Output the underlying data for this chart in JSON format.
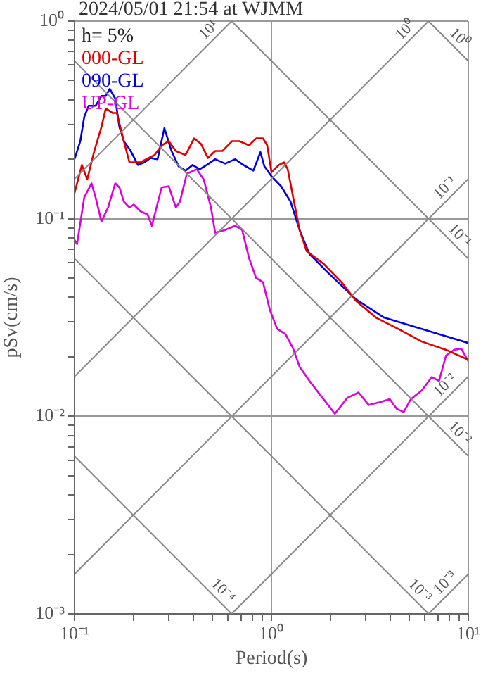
{
  "chart_data": {
    "type": "line",
    "title": "2024/05/01 21:54 at WJMM",
    "xlabel": "Period(s)",
    "ylabel": "pSv(cm/s)",
    "annotations": [
      "h= 5%"
    ],
    "log": "xy",
    "grid": true,
    "legend": "top left",
    "xlim": [
      0.1,
      10
    ],
    "ylim": [
      0.001,
      1
    ],
    "xticks": [
      {
        "value": 0.1,
        "label": "10⁻¹"
      },
      {
        "value": 0.2,
        "label": null
      },
      {
        "value": 0.3,
        "label": null
      },
      {
        "value": 0.4,
        "label": null
      },
      {
        "value": 0.5,
        "label": null
      },
      {
        "value": 0.6,
        "label": null
      },
      {
        "value": 0.7,
        "label": null
      },
      {
        "value": 0.8,
        "label": null
      },
      {
        "value": 0.9,
        "label": null
      },
      {
        "value": 1,
        "label": "10⁰"
      },
      {
        "value": 2,
        "label": null
      },
      {
        "value": 3,
        "label": null
      },
      {
        "value": 4,
        "label": null
      },
      {
        "value": 5,
        "label": null
      },
      {
        "value": 6,
        "label": null
      },
      {
        "value": 7,
        "label": null
      },
      {
        "value": 8,
        "label": null
      },
      {
        "value": 9,
        "label": null
      },
      {
        "value": 10,
        "label": "10¹"
      }
    ],
    "yticks": [
      {
        "value": 0.001,
        "label": "10⁻³"
      },
      {
        "value": 0.002,
        "label": null
      },
      {
        "value": 0.003,
        "label": null
      },
      {
        "value": 0.004,
        "label": null
      },
      {
        "value": 0.005,
        "label": null
      },
      {
        "value": 0.006,
        "label": null
      },
      {
        "value": 0.007,
        "label": null
      },
      {
        "value": 0.008,
        "label": null
      },
      {
        "value": 0.009,
        "label": null
      },
      {
        "value": 0.01,
        "label": "10⁻²"
      },
      {
        "value": 0.02,
        "label": null
      },
      {
        "value": 0.03,
        "label": null
      },
      {
        "value": 0.04,
        "label": null
      },
      {
        "value": 0.05,
        "label": null
      },
      {
        "value": 0.06,
        "label": null
      },
      {
        "value": 0.07,
        "label": null
      },
      {
        "value": 0.08,
        "label": null
      },
      {
        "value": 0.09,
        "label": null
      },
      {
        "value": 0.1,
        "label": "10⁻¹"
      },
      {
        "value": 0.2,
        "label": null
      },
      {
        "value": 0.3,
        "label": null
      },
      {
        "value": 0.4,
        "label": null
      },
      {
        "value": 0.5,
        "label": null
      },
      {
        "value": 0.6,
        "label": null
      },
      {
        "value": 0.7,
        "label": null
      },
      {
        "value": 0.8,
        "label": null
      },
      {
        "value": 0.9,
        "label": null
      },
      {
        "value": 1,
        "label": "10⁰"
      }
    ],
    "series": [
      {
        "name": "10¹",
        "type": "line",
        "color": "#888888",
        "x": [
          0.1,
          0.628
        ],
        "values": [
          0.159,
          1
        ]
      },
      {
        "name": "10⁰",
        "type": "line",
        "color": "#888888",
        "x": [
          0.1,
          6.28
        ],
        "values": [
          0.0159,
          1
        ]
      },
      {
        "name": "10⁻¹",
        "type": "line",
        "color": "#888888",
        "x": [
          0.1,
          10
        ],
        "values": [
          0.00159,
          0.159
        ]
      },
      {
        "name": "10⁻²",
        "type": "line",
        "color": "#888888",
        "x": [
          0.628,
          10
        ],
        "values": [
          0.001,
          0.0159
        ]
      },
      {
        "name": "10⁻³",
        "type": "line",
        "color": "#888888",
        "x": [
          6.28,
          10
        ],
        "values": [
          0.001,
          0.00159
        ]
      },
      {
        "name": "10⁰",
        "type": "line",
        "color": "#888888",
        "x": [
          6.28,
          10
        ],
        "values": [
          1,
          0.628
        ]
      },
      {
        "name": "10⁻¹",
        "type": "line",
        "color": "#888888",
        "x": [
          0.628,
          10
        ],
        "values": [
          1,
          0.0628
        ]
      },
      {
        "name": "10⁻²",
        "type": "line",
        "color": "#888888",
        "x": [
          0.1,
          10
        ],
        "values": [
          0.628,
          0.00628
        ]
      },
      {
        "name": "10⁻³",
        "type": "line",
        "color": "#888888",
        "x": [
          0.1,
          6.28
        ],
        "values": [
          0.0628,
          0.001
        ]
      },
      {
        "name": "10⁻⁴",
        "type": "line",
        "color": "#888888",
        "x": [
          0.1,
          0.628
        ],
        "values": [
          0.00628,
          0.001
        ]
      },
      {
        "name": "000-GL",
        "color": "#dd0000",
        "x": [
          0.1,
          0.109,
          0.116,
          0.126,
          0.137,
          0.144,
          0.156,
          0.164,
          0.178,
          0.19,
          0.216,
          0.255,
          0.277,
          0.301,
          0.327,
          0.366,
          0.405,
          0.439,
          0.476,
          0.518,
          0.563,
          0.632,
          0.687,
          0.77,
          0.836,
          0.906,
          0.952,
          1,
          1.09,
          1.16,
          1.21,
          1.29,
          1.39,
          1.51,
          1.84,
          2.27,
          2.68,
          3.39,
          4.4,
          5.8,
          7.71,
          10
        ],
        "values": [
          0.135,
          0.187,
          0.158,
          0.22,
          0.291,
          0.361,
          0.343,
          0.343,
          0.247,
          0.193,
          0.193,
          0.21,
          0.235,
          0.247,
          0.22,
          0.21,
          0.255,
          0.239,
          0.203,
          0.22,
          0.22,
          0.247,
          0.247,
          0.235,
          0.255,
          0.255,
          0.235,
          0.172,
          0.187,
          0.193,
          0.178,
          0.128,
          0.0877,
          0.0685,
          0.0591,
          0.0477,
          0.0385,
          0.0316,
          0.0277,
          0.0239,
          0.0217,
          0.0193
        ]
      },
      {
        "name": "090-GL",
        "color": "#0000dd",
        "x": [
          0.1,
          0.107,
          0.112,
          0.118,
          0.128,
          0.137,
          0.144,
          0.151,
          0.161,
          0.169,
          0.178,
          0.193,
          0.21,
          0.227,
          0.243,
          0.264,
          0.286,
          0.311,
          0.338,
          0.366,
          0.398,
          0.432,
          0.469,
          0.518,
          0.582,
          0.654,
          0.721,
          0.809,
          0.879,
          0.921,
          1,
          1.12,
          1.25,
          1.39,
          1.56,
          1.93,
          2.68,
          3.73,
          5.8,
          10
        ],
        "values": [
          0.2,
          0.247,
          0.327,
          0.373,
          0.373,
          0.418,
          0.418,
          0.454,
          0.405,
          0.291,
          0.247,
          0.22,
          0.187,
          0.193,
          0.203,
          0.2,
          0.287,
          0.22,
          0.184,
          0.175,
          0.187,
          0.178,
          0.187,
          0.2,
          0.19,
          0.2,
          0.187,
          0.175,
          0.217,
          0.184,
          0.164,
          0.146,
          0.122,
          0.0877,
          0.0663,
          0.0535,
          0.0392,
          0.0316,
          0.0277,
          0.0235
        ]
      },
      {
        "name": "UP-GL",
        "color": "#dd00dd",
        "x": [
          0.1,
          0.103,
          0.112,
          0.122,
          0.128,
          0.137,
          0.148,
          0.161,
          0.169,
          0.178,
          0.19,
          0.2,
          0.216,
          0.235,
          0.247,
          0.277,
          0.301,
          0.327,
          0.343,
          0.372,
          0.418,
          0.453,
          0.493,
          0.518,
          0.582,
          0.654,
          0.71,
          0.77,
          0.836,
          0.906,
          0.984,
          1.07,
          1.18,
          1.29,
          1.39,
          1.56,
          1.84,
          2.1,
          2.43,
          2.77,
          3.12,
          3.56,
          3.99,
          4.33,
          4.7,
          5.1,
          5.8,
          6.53,
          7.1,
          7.71,
          8.48,
          9.2,
          10
        ],
        "values": [
          0.0782,
          0.0744,
          0.128,
          0.151,
          0.128,
          0.0968,
          0.114,
          0.151,
          0.144,
          0.122,
          0.114,
          0.118,
          0.109,
          0.105,
          0.0921,
          0.144,
          0.146,
          0.114,
          0.122,
          0.169,
          0.178,
          0.158,
          0.114,
          0.0849,
          0.0877,
          0.0921,
          0.0877,
          0.0631,
          0.0501,
          0.0477,
          0.0343,
          0.0277,
          0.026,
          0.022,
          0.0178,
          0.0151,
          0.0122,
          0.0103,
          0.0124,
          0.0132,
          0.0114,
          0.0118,
          0.0122,
          0.0109,
          0.0105,
          0.0122,
          0.0135,
          0.0158,
          0.0151,
          0.0203,
          0.0217,
          0.022,
          0.019
        ]
      }
    ]
  }
}
